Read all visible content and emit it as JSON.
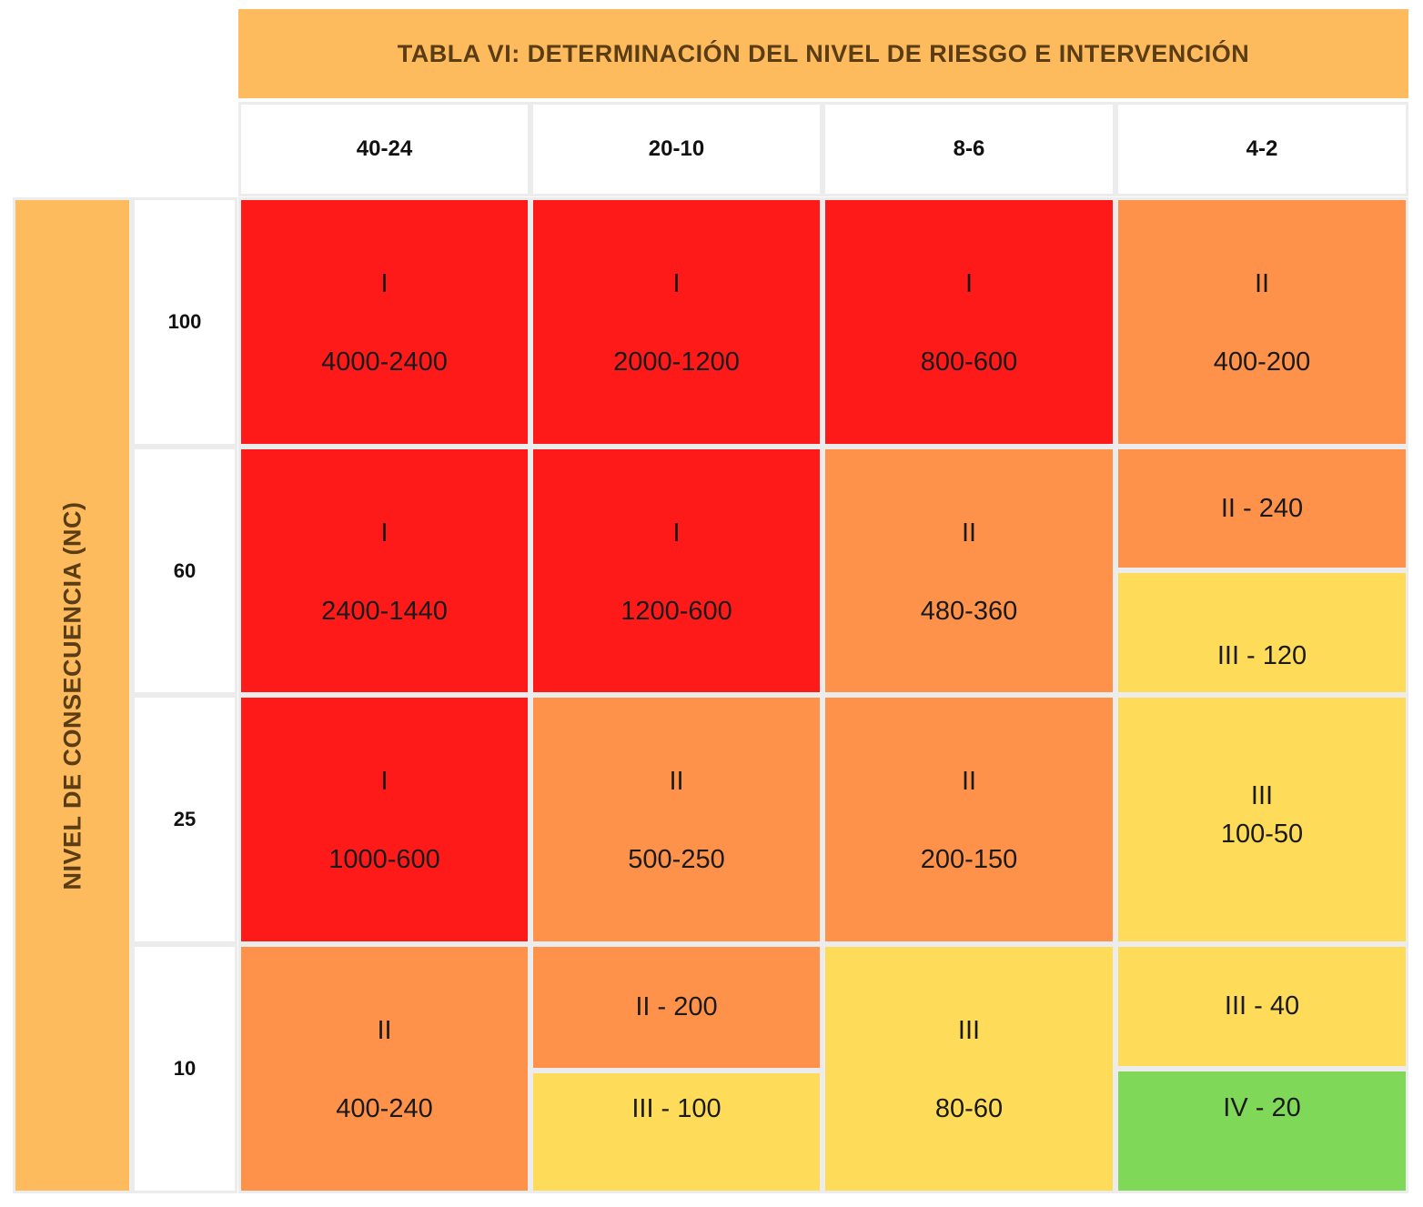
{
  "title": "TABLA VI: DETERMINACIÓN DEL NIVEL DE RIESGO E INTERVENCIÓN",
  "side_label": "NIVEL DE CONSECUENCIA (NC)",
  "columns": [
    "40-24",
    "20-10",
    "8-6",
    "4-2"
  ],
  "rows": [
    "100",
    "60",
    "25",
    "10"
  ],
  "cells": {
    "r100": {
      "c1": {
        "level": "I",
        "range": "4000-2400"
      },
      "c2": {
        "level": "I",
        "range": "2000-1200"
      },
      "c3": {
        "level": "I",
        "range": "800-600"
      },
      "c4": {
        "level": "II",
        "range": "400-200"
      }
    },
    "r60": {
      "c1": {
        "level": "I",
        "range": "2400-1440"
      },
      "c2": {
        "level": "I",
        "range": "1200-600"
      },
      "c3": {
        "level": "II",
        "range": "480-360"
      },
      "c4": {
        "top": "II - 240",
        "bottom": "III - 120"
      }
    },
    "r25": {
      "c1": {
        "level": "I",
        "range": "1000-600"
      },
      "c2": {
        "level": "II",
        "range": "500-250"
      },
      "c3": {
        "level": "II",
        "range": "200-150"
      },
      "c4": {
        "level": "III",
        "range": "100-50"
      }
    },
    "r10": {
      "c1": {
        "level": "II",
        "range": "400-240"
      },
      "c2": {
        "top": "II - 200",
        "bottom": "III - 100"
      },
      "c3": {
        "level": "III",
        "range": "80-60"
      },
      "c4": {
        "top": "III - 40",
        "bottom": "IV - 20"
      }
    }
  },
  "colors": {
    "header": "#fdbb5d",
    "level_I": "#ff1a1a",
    "level_II": "#ff924b",
    "level_III": "#fedc59",
    "level_IV": "#80d858"
  }
}
